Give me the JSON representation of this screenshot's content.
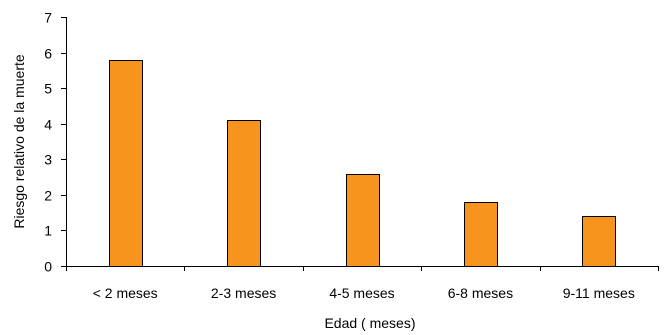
{
  "chart_data": {
    "type": "bar",
    "categories": [
      "< 2 meses",
      "2-3 meses",
      "4-5 meses",
      "6-8 meses",
      "9-11 meses"
    ],
    "values": [
      5.8,
      4.1,
      2.6,
      1.8,
      1.4
    ],
    "xlabel": "Edad ( meses)",
    "ylabel": "Riesgo relativo de la muerte",
    "ylim": [
      0,
      7
    ],
    "yticks": [
      "0",
      "1",
      "2",
      "3",
      "4",
      "5",
      "6",
      "7"
    ],
    "grid": false,
    "legend": "none",
    "bar_color": "#F7941D",
    "bar_edge_color": "#000000"
  }
}
